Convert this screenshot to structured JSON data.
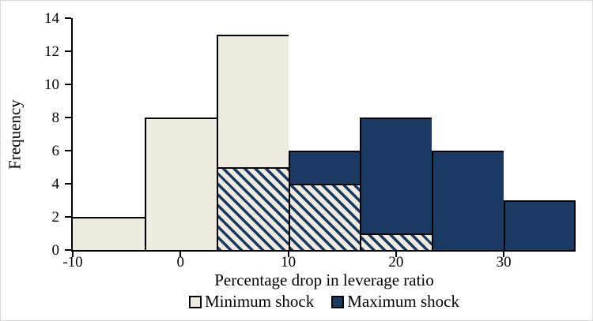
{
  "figure": {
    "background": "#ffffff",
    "border_color": "#d9d9d9"
  },
  "chart_data": {
    "type": "bar",
    "subtype": "overlaid-histogram",
    "title": "",
    "xlabel": "Percentage drop in leverage ratio",
    "ylabel": "Frequency",
    "xlim": [
      -10,
      36.6667
    ],
    "ylim": [
      0,
      14
    ],
    "x_ticks": [
      -10,
      0,
      10,
      20,
      30
    ],
    "y_ticks": [
      0,
      2,
      4,
      6,
      8,
      10,
      12,
      14
    ],
    "bin_edges": [
      -10,
      -3.3333,
      3.3333,
      10,
      16.6667,
      23.3333,
      30,
      36.6667
    ],
    "series": [
      {
        "name": "Minimum shock",
        "color": "#eeece1",
        "values": [
          2,
          8,
          13,
          4,
          1,
          0,
          0
        ]
      },
      {
        "name": "Maximum shock",
        "color": "#1b3a63",
        "values": [
          0,
          0,
          5,
          6,
          8,
          6,
          3
        ]
      }
    ],
    "overlap_hatch": {
      "style": "diagonal-stripes",
      "stripe_color": "#1b3a63",
      "background_color": "#eeece1"
    },
    "axis_color": "#000000",
    "grid": false,
    "legend": {
      "position": "bottom-center",
      "items": [
        {
          "label": "Minimum shock",
          "color": "#eeece1"
        },
        {
          "label": "Maximum shock",
          "color": "#1b3a63"
        }
      ]
    }
  }
}
